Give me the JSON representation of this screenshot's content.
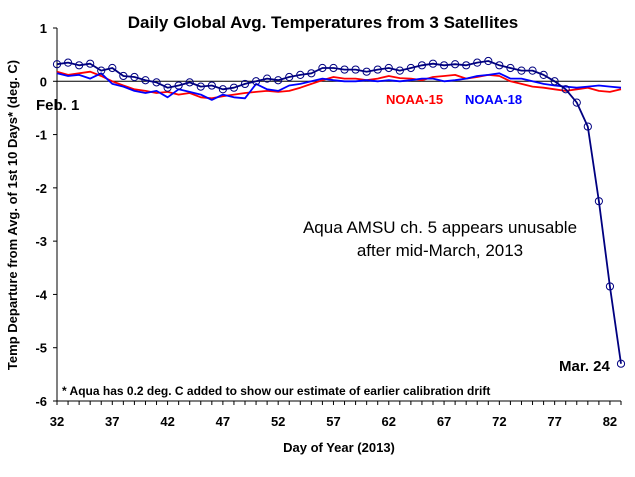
{
  "chart_data": {
    "type": "line",
    "title": "Daily Global Avg. Temperatures from 3 Satellites",
    "xlabel": "Day of Year (2013)",
    "ylabel": "Temp Departure from Avg. of 1st 10 Days* (deg. C)",
    "xlim": [
      32,
      83
    ],
    "ylim": [
      -6,
      1
    ],
    "xticks": [
      32,
      37,
      42,
      47,
      52,
      57,
      62,
      67,
      72,
      77,
      82
    ],
    "yticks": [
      1,
      0,
      -1,
      -2,
      -3,
      -4,
      -5,
      -6
    ],
    "series": [
      {
        "name": "NOAA-15",
        "color": "#ff0000",
        "x": [
          32,
          33,
          34,
          35,
          36,
          37,
          38,
          39,
          40,
          41,
          42,
          43,
          44,
          45,
          46,
          47,
          48,
          49,
          50,
          51,
          52,
          53,
          54,
          55,
          56,
          57,
          58,
          59,
          60,
          61,
          62,
          63,
          64,
          65,
          66,
          67,
          68,
          69,
          70,
          71,
          72,
          73,
          74,
          75,
          76,
          77,
          78,
          79,
          80,
          81,
          82,
          83
        ],
        "values": [
          0.18,
          0.12,
          0.15,
          0.18,
          0.1,
          0.0,
          -0.08,
          -0.15,
          -0.18,
          -0.22,
          -0.2,
          -0.25,
          -0.22,
          -0.3,
          -0.32,
          -0.28,
          -0.25,
          -0.22,
          -0.2,
          -0.18,
          -0.2,
          -0.18,
          -0.12,
          -0.05,
          0.02,
          0.08,
          0.05,
          0.05,
          0.02,
          0.05,
          0.1,
          0.06,
          0.05,
          0.02,
          0.08,
          0.1,
          0.12,
          0.05,
          0.08,
          0.12,
          0.1,
          0.0,
          -0.05,
          -0.1,
          -0.12,
          -0.15,
          -0.18,
          -0.15,
          -0.12,
          -0.18,
          -0.2,
          -0.15
        ]
      },
      {
        "name": "NOAA-18",
        "color": "#0000ff",
        "x": [
          32,
          33,
          34,
          35,
          36,
          37,
          38,
          39,
          40,
          41,
          42,
          43,
          44,
          45,
          46,
          47,
          48,
          49,
          50,
          51,
          52,
          53,
          54,
          55,
          56,
          57,
          58,
          59,
          60,
          61,
          62,
          63,
          64,
          65,
          66,
          67,
          68,
          69,
          70,
          71,
          72,
          73,
          74,
          75,
          76,
          77,
          78,
          79,
          80,
          81,
          82,
          83
        ],
        "values": [
          0.15,
          0.1,
          0.12,
          0.05,
          0.15,
          -0.05,
          -0.1,
          -0.18,
          -0.22,
          -0.18,
          -0.3,
          -0.15,
          -0.2,
          -0.25,
          -0.35,
          -0.25,
          -0.3,
          -0.32,
          -0.05,
          -0.15,
          -0.18,
          -0.08,
          -0.05,
          0.0,
          0.05,
          0.02,
          0.0,
          0.0,
          0.02,
          0.0,
          0.02,
          0.0,
          0.02,
          0.05,
          0.05,
          0.0,
          0.02,
          0.05,
          0.1,
          0.12,
          0.15,
          0.05,
          0.05,
          0.0,
          -0.05,
          -0.08,
          -0.1,
          -0.12,
          -0.1,
          -0.08,
          -0.1,
          -0.12
        ]
      },
      {
        "name": "Aqua AMSU ch. 5",
        "color": "#000080",
        "marker": "circle",
        "x": [
          32,
          33,
          34,
          35,
          36,
          37,
          38,
          39,
          40,
          41,
          42,
          43,
          44,
          45,
          46,
          47,
          48,
          49,
          50,
          51,
          52,
          53,
          54,
          55,
          56,
          57,
          58,
          59,
          60,
          61,
          62,
          63,
          64,
          65,
          66,
          67,
          68,
          69,
          70,
          71,
          72,
          73,
          74,
          75,
          76,
          77,
          78,
          79,
          80,
          81,
          82,
          83
        ],
        "values": [
          0.32,
          0.35,
          0.3,
          0.33,
          0.2,
          0.25,
          0.1,
          0.08,
          0.02,
          -0.02,
          -0.12,
          -0.08,
          -0.02,
          -0.1,
          -0.08,
          -0.15,
          -0.12,
          -0.05,
          0.0,
          0.05,
          0.02,
          0.08,
          0.12,
          0.15,
          0.25,
          0.25,
          0.22,
          0.22,
          0.18,
          0.22,
          0.25,
          0.2,
          0.25,
          0.3,
          0.33,
          0.3,
          0.32,
          0.3,
          0.35,
          0.38,
          0.3,
          0.25,
          0.2,
          0.2,
          0.12,
          0.0,
          -0.15,
          -0.4,
          -0.85,
          -2.25,
          -3.85,
          -5.3
        ]
      }
    ],
    "legend": [
      "NOAA-15",
      "NOAA-18"
    ],
    "annotations": {
      "start": "Feb. 1",
      "end": "Mar. 24",
      "main_line1": "Aqua AMSU ch. 5 appears unusable",
      "main_line2": "after mid-March, 2013",
      "footnote": "* Aqua has 0.2 deg. C added to show our estimate of earlier calibration drift"
    }
  }
}
